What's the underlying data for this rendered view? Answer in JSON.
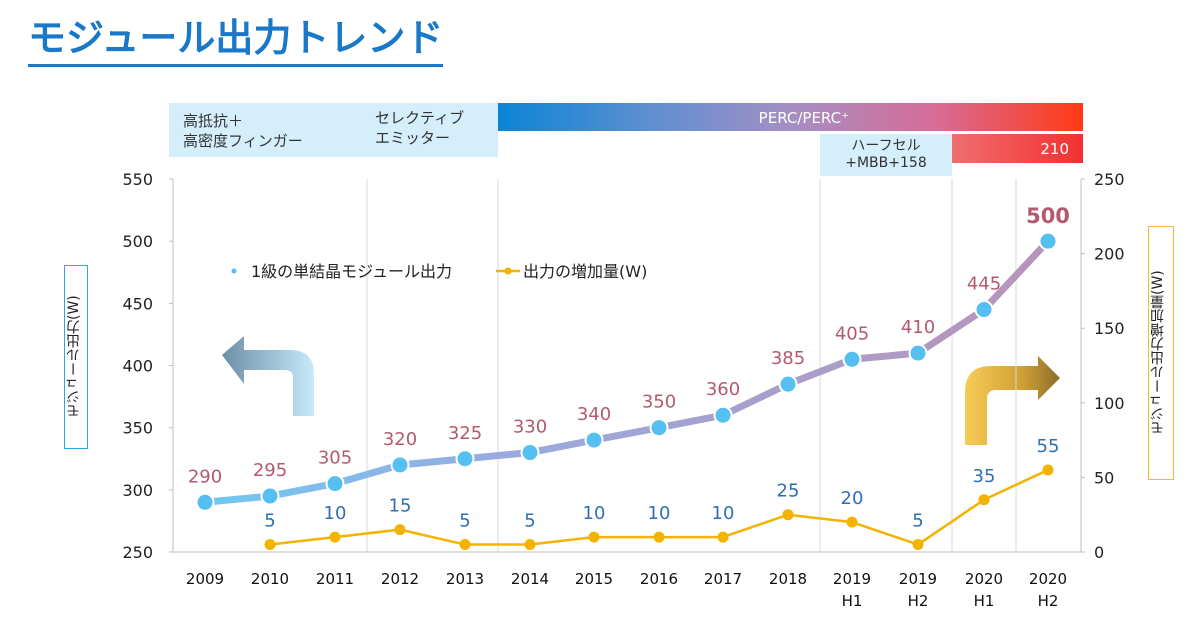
{
  "title": "モジュール出力トレンド",
  "tech_bands": {
    "band1_line1": "高抵抗＋",
    "band1_line2": "高密度フィンガー",
    "band2_line1": "セレクティブ",
    "band2_line2": "エミッター",
    "perc_label": "PERC/PERC⁺",
    "half_cell_line1": "ハーフセル",
    "half_cell_line2": "+MBB+158",
    "wafer_210": "210"
  },
  "colors": {
    "main_line": "#9aa3d3",
    "main_marker": "#54bff0",
    "main_label": "#b35a6e",
    "increase_line": "#f4b300",
    "increase_label": "#2f6fb3",
    "grid": "#d9d9d9"
  },
  "chart_data": {
    "type": "line",
    "categories": [
      [
        "2009"
      ],
      [
        "2010"
      ],
      [
        "2011"
      ],
      [
        "2012"
      ],
      [
        "2013"
      ],
      [
        "2014"
      ],
      [
        "2015"
      ],
      [
        "2016"
      ],
      [
        "2017"
      ],
      [
        "2018"
      ],
      [
        "2019",
        "H1"
      ],
      [
        "2019",
        "H2"
      ],
      [
        "2020",
        "H1"
      ],
      [
        "2020",
        "H2"
      ]
    ],
    "series": [
      {
        "name": "1級の単結晶モジュール出力",
        "axis": "left",
        "values": [
          290,
          295,
          305,
          320,
          325,
          330,
          340,
          350,
          360,
          385,
          405,
          410,
          445,
          500
        ]
      },
      {
        "name": "出力の増加量(W)",
        "axis": "right",
        "values": [
          null,
          5,
          10,
          15,
          5,
          5,
          10,
          10,
          10,
          25,
          20,
          5,
          35,
          55
        ]
      }
    ],
    "ylabel": "モジュール出力(W)",
    "y2label": "モジュール出力増加量(W)",
    "ylim": [
      250,
      550
    ],
    "y2lim": [
      0,
      250
    ],
    "yticks": [
      "250",
      "300",
      "350",
      "400",
      "450",
      "500",
      "550"
    ],
    "y2ticks": [
      "0",
      "50",
      "100",
      "150",
      "200",
      "250"
    ],
    "legend_position": "upper-left"
  }
}
